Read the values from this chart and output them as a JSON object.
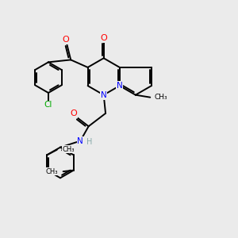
{
  "background_color": "#ebebeb",
  "atom_colors": {
    "N": "#0000ff",
    "O": "#ff0000",
    "Cl": "#00aa00",
    "H": "#88aaaa"
  },
  "bond_lw": 1.4,
  "figsize": [
    3.0,
    3.0
  ],
  "dpi": 100,
  "xlim": [
    0.5,
    10.5
  ],
  "ylim": [
    1.0,
    10.5
  ]
}
